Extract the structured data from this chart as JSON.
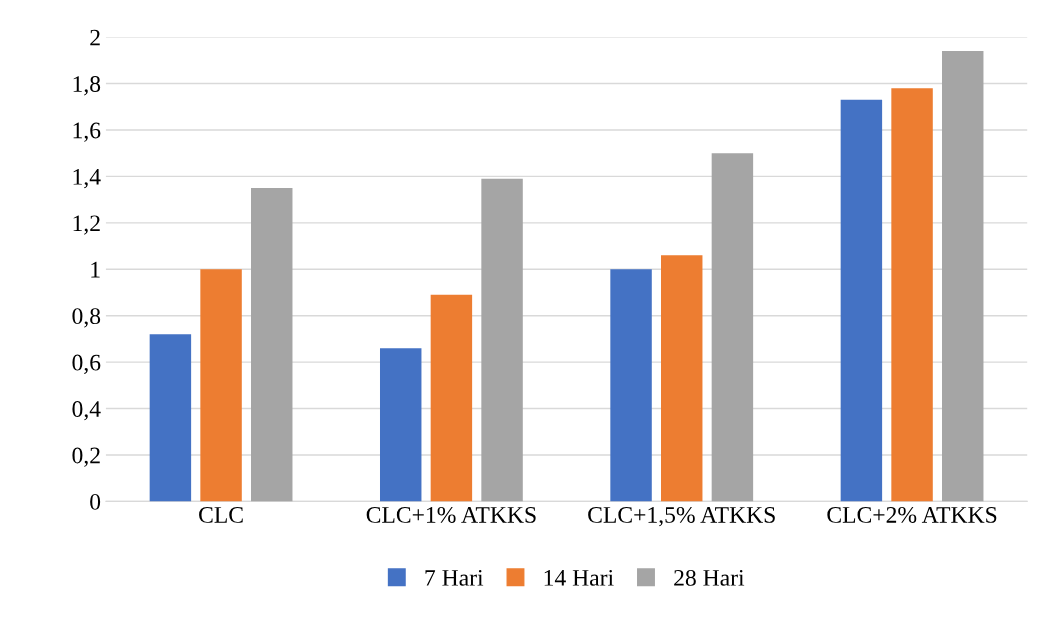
{
  "chart_data": {
    "type": "bar",
    "categories": [
      "CLC",
      "CLC+1% ATKKS",
      "CLC+1,5% ATKKS",
      "CLC+2% ATKKS"
    ],
    "series": [
      {
        "name": "7 Hari",
        "color": "#4472c4",
        "values": [
          0.72,
          0.66,
          1.0,
          1.73
        ]
      },
      {
        "name": "14 Hari",
        "color": "#ed7d31",
        "values": [
          1.0,
          0.89,
          1.06,
          1.78
        ]
      },
      {
        "name": "28 Hari",
        "color": "#a5a5a5",
        "values": [
          1.35,
          1.39,
          1.5,
          1.94
        ]
      }
    ],
    "ylim": [
      0,
      2
    ],
    "yticks": [
      0,
      {
        "value": 0.2,
        "label": "0,2"
      },
      {
        "value": 0.4,
        "label": "0,4"
      },
      {
        "value": 0.6,
        "label": "0,6"
      },
      {
        "value": 0.8,
        "label": "0,8"
      },
      1,
      {
        "value": 1.2,
        "label": "1,2"
      },
      {
        "value": 1.4,
        "label": "1,4"
      },
      {
        "value": 1.6,
        "label": "1,6"
      },
      {
        "value": 1.8,
        "label": "1,8"
      },
      2
    ],
    "grid": "y",
    "legend": "bottom"
  }
}
